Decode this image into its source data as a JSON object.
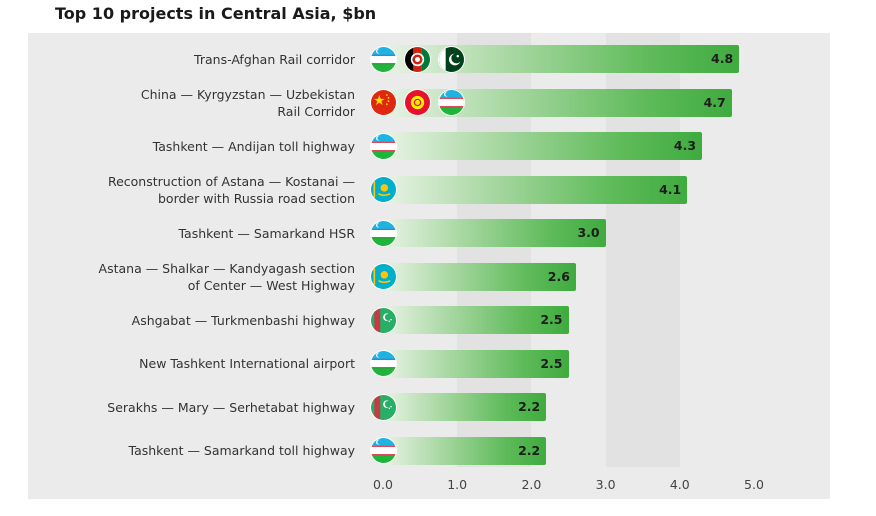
{
  "chart_data": {
    "type": "bar",
    "orientation": "horizontal",
    "title": "Top 10 projects in Central Asia, $bn",
    "xlim": [
      0,
      5
    ],
    "ticks": [
      "0.0",
      "1.0",
      "2.0",
      "3.0",
      "4.0",
      "5.0"
    ],
    "categories": [
      "Trans-Afghan Rail corridor",
      "China — Kyrgyzstan — Uzbekistan\nRail Corridor",
      "Tashkent — Andijan toll highway",
      "Reconstruction of Astana — Kostanai —\nborder with Russia road section",
      "Tashkent — Samarkand HSR",
      "Astana — Shalkar — Kandyagash section\nof Center — West Highway",
      "Ashgabat — Turkmenbashi highway",
      "New Tashkent International airport",
      "Serakhs — Mary — Serhetabat highway",
      "Tashkent — Samarkand toll highway"
    ],
    "values": [
      4.8,
      4.7,
      4.3,
      4.1,
      3.0,
      2.6,
      2.5,
      2.5,
      2.2,
      2.2
    ],
    "value_labels": [
      "4.8",
      "4.7",
      "4.3",
      "4.1",
      "3.0",
      "2.6",
      "2.5",
      "2.5",
      "2.2",
      "2.2"
    ],
    "flags": [
      [
        "uzbekistan-flag-icon",
        "afghanistan-flag-icon",
        "pakistan-flag-icon"
      ],
      [
        "china-flag-icon",
        "kyrgyzstan-flag-icon",
        "uzbekistan-flag-icon"
      ],
      [
        "uzbekistan-flag-icon"
      ],
      [
        "kazakhstan-flag-icon"
      ],
      [
        "uzbekistan-flag-icon"
      ],
      [
        "kazakhstan-flag-icon"
      ],
      [
        "turkmenistan-flag-icon"
      ],
      [
        "uzbekistan-flag-icon"
      ],
      [
        "turkmenistan-flag-icon"
      ],
      [
        "uzbekistan-flag-icon"
      ]
    ],
    "grid": "alternating vertical bands",
    "bar_color": "#3fab3f"
  }
}
